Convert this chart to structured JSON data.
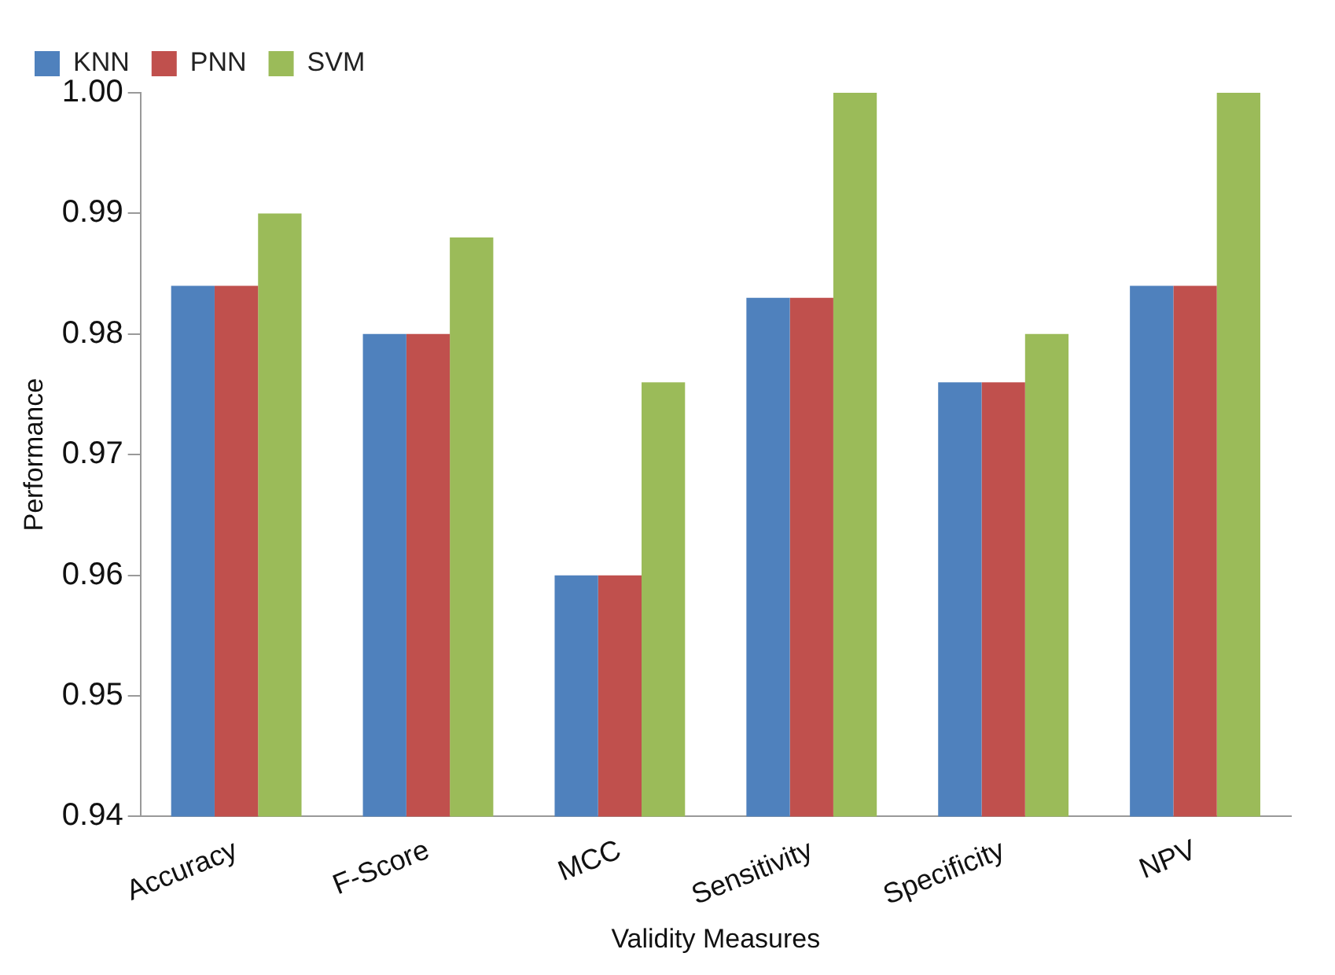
{
  "chart_data": {
    "type": "bar",
    "xlabel": "Validity Measures",
    "ylabel": "Performance",
    "categories": [
      "Accuracy",
      "F-Score",
      "MCC",
      "Sensitivity",
      "Specificity",
      "NPV"
    ],
    "series": [
      {
        "name": "KNN",
        "color": "#4f81bd",
        "values": [
          0.984,
          0.98,
          0.96,
          0.983,
          0.976,
          0.984
        ]
      },
      {
        "name": "PNN",
        "color": "#c0504d",
        "values": [
          0.984,
          0.98,
          0.96,
          0.983,
          0.976,
          0.984
        ]
      },
      {
        "name": "SVM",
        "color": "#9bbb59",
        "values": [
          0.99,
          0.988,
          0.976,
          1.0,
          0.98,
          1.0
        ]
      }
    ],
    "ylim": [
      0.94,
      1.0
    ],
    "yticks": [
      {
        "value": 0.94,
        "label": "0.94"
      },
      {
        "value": 0.95,
        "label": "0.95"
      },
      {
        "value": 0.96,
        "label": "0.96"
      },
      {
        "value": 0.97,
        "label": "0.97"
      },
      {
        "value": 0.98,
        "label": "0.98"
      },
      {
        "value": 0.99,
        "label": "0.99"
      },
      {
        "value": 1.0,
        "label": "1.00"
      }
    ],
    "grid": false,
    "legend": "top left"
  }
}
